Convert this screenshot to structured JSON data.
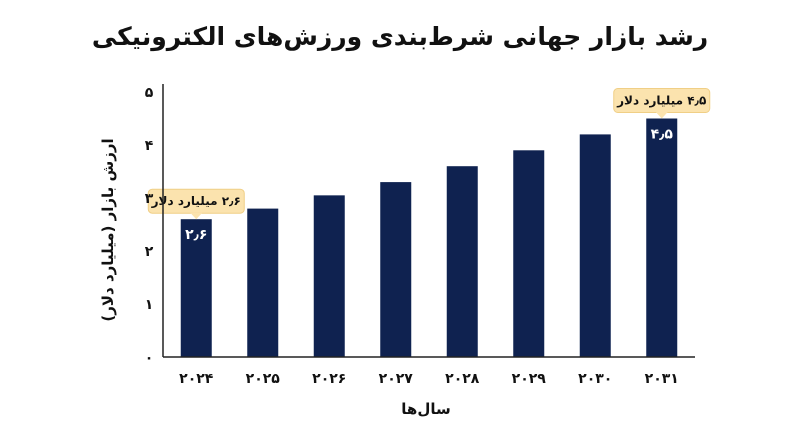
{
  "chart_data": {
    "type": "bar",
    "title": "رشد بازار جهانی شرط‌بندی ورزش‌های الکترونیکی",
    "xlabel": "سال‌ها",
    "ylabel": "ارزش بازار (میلیارد دلار)",
    "categories": [
      "۲۰۲۴",
      "۲۰۲۵",
      "۲۰۲۶",
      "۲۰۲۷",
      "۲۰۲۸",
      "۲۰۲۹",
      "۲۰۳۰",
      "۲۰۳۱"
    ],
    "values": [
      2.6,
      2.8,
      3.05,
      3.3,
      3.6,
      3.9,
      4.2,
      4.5
    ],
    "ylim": [
      0,
      5
    ],
    "yticks": [
      0,
      1,
      2,
      3,
      4,
      5
    ],
    "ytick_labels": [
      "۰",
      "۱",
      "۲",
      "۳",
      "۴",
      "۵"
    ],
    "grid": false,
    "legend": "none",
    "data_labels": [
      {
        "index": 0,
        "label": "۲٫۶"
      },
      {
        "index": 7,
        "label": "۴٫۵"
      }
    ],
    "annotations": [
      {
        "index": 0,
        "text": "۲٫۶ میلیارد دلار"
      },
      {
        "index": 7,
        "text": "۴٫۵ میلیارد دلار"
      }
    ],
    "colors": {
      "bar": "#0f2250",
      "callout_fill": "#fbe3ae",
      "callout_stroke": "#f0cf86",
      "axis": "#222222"
    }
  }
}
